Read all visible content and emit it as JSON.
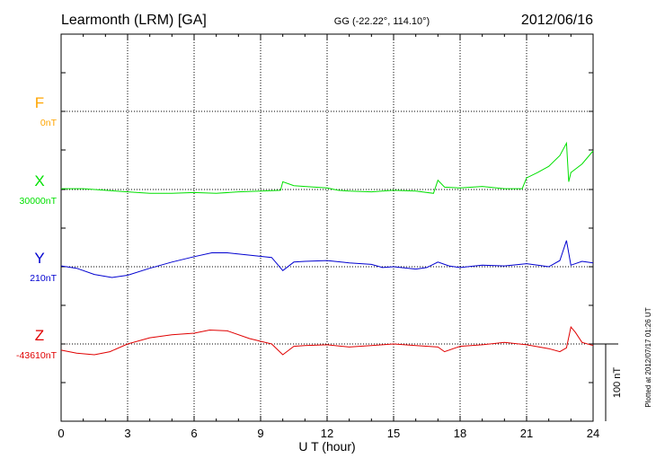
{
  "header": {
    "station": "Learmonth (LRM)  [GA]",
    "coords": "GG (-22.22°, 114.10°)",
    "date": "2012/06/16"
  },
  "side_note": "Plotted at 2012/07/17 01:26 UT",
  "scale_label": "100 nT",
  "chart_data": {
    "type": "line",
    "xlabel": "U T (hour)",
    "xlim": [
      0,
      24
    ],
    "x_ticks": [
      "0",
      "3",
      "6",
      "9",
      "12",
      "15",
      "18",
      "21",
      "24"
    ],
    "grid": true,
    "y_unit": "nT",
    "series": [
      {
        "name": "F",
        "baseline_label": "0nT",
        "color": "#ffa500",
        "values": []
      },
      {
        "name": "X",
        "baseline_label": "30000nT",
        "color": "#00e000",
        "values": [
          [
            0,
            1
          ],
          [
            1,
            1
          ],
          [
            2,
            -1
          ],
          [
            3,
            -3
          ],
          [
            4,
            -5
          ],
          [
            5,
            -5
          ],
          [
            6,
            -4
          ],
          [
            7,
            -5
          ],
          [
            8,
            -3
          ],
          [
            9,
            -2
          ],
          [
            9.9,
            -1
          ],
          [
            10,
            10
          ],
          [
            10.5,
            5
          ],
          [
            11,
            4
          ],
          [
            12,
            2
          ],
          [
            12.5,
            -1
          ],
          [
            13,
            -2
          ],
          [
            14,
            -3
          ],
          [
            15,
            -1
          ],
          [
            16,
            -2
          ],
          [
            16.8,
            -5
          ],
          [
            17,
            12
          ],
          [
            17.3,
            3
          ],
          [
            18,
            2
          ],
          [
            19,
            4
          ],
          [
            20,
            1
          ],
          [
            20.8,
            1
          ],
          [
            21,
            15
          ],
          [
            21.5,
            22
          ],
          [
            22,
            30
          ],
          [
            22.5,
            44
          ],
          [
            22.8,
            60
          ],
          [
            22.9,
            10
          ],
          [
            23,
            22
          ],
          [
            23.5,
            33
          ],
          [
            24,
            50
          ]
        ]
      },
      {
        "name": "Y",
        "baseline_label": "210nT",
        "color": "#0000d0",
        "values": [
          [
            0,
            1
          ],
          [
            0.7,
            -2
          ],
          [
            1.5,
            -10
          ],
          [
            2.3,
            -14
          ],
          [
            3,
            -11
          ],
          [
            4,
            -2
          ],
          [
            5,
            6
          ],
          [
            6,
            13
          ],
          [
            6.8,
            18
          ],
          [
            7.5,
            18
          ],
          [
            8.5,
            15
          ],
          [
            9.5,
            12
          ],
          [
            10,
            -5
          ],
          [
            10.5,
            6
          ],
          [
            11,
            7
          ],
          [
            12,
            8
          ],
          [
            13,
            5
          ],
          [
            14,
            3
          ],
          [
            14.5,
            -1
          ],
          [
            15,
            0
          ],
          [
            16,
            -3
          ],
          [
            16.5,
            -1
          ],
          [
            17,
            6
          ],
          [
            17.5,
            1
          ],
          [
            18,
            -1
          ],
          [
            19,
            2
          ],
          [
            20,
            1
          ],
          [
            21,
            4
          ],
          [
            21.5,
            2
          ],
          [
            22,
            0
          ],
          [
            22.5,
            8
          ],
          [
            22.8,
            34
          ],
          [
            23,
            2
          ],
          [
            23.5,
            7
          ],
          [
            24,
            5
          ]
        ]
      },
      {
        "name": "Z",
        "baseline_label": "-43610nT",
        "color": "#e00000",
        "values": [
          [
            0,
            -8
          ],
          [
            0.7,
            -12
          ],
          [
            1.5,
            -14
          ],
          [
            2.2,
            -10
          ],
          [
            3,
            0
          ],
          [
            4,
            8
          ],
          [
            5,
            12
          ],
          [
            6,
            14
          ],
          [
            6.7,
            18
          ],
          [
            7.5,
            17
          ],
          [
            8.5,
            7
          ],
          [
            9.5,
            0
          ],
          [
            10,
            -14
          ],
          [
            10.5,
            -3
          ],
          [
            11,
            -2
          ],
          [
            12,
            -1
          ],
          [
            13,
            -4
          ],
          [
            14,
            -2
          ],
          [
            15,
            0
          ],
          [
            16,
            -2
          ],
          [
            17,
            -4
          ],
          [
            17.3,
            -10
          ],
          [
            18,
            -3
          ],
          [
            19,
            -1
          ],
          [
            20,
            2
          ],
          [
            21,
            -1
          ],
          [
            22,
            -6
          ],
          [
            22.5,
            -10
          ],
          [
            22.8,
            -5
          ],
          [
            23,
            22
          ],
          [
            23.2,
            15
          ],
          [
            23.5,
            2
          ],
          [
            24,
            -2
          ]
        ]
      }
    ]
  }
}
